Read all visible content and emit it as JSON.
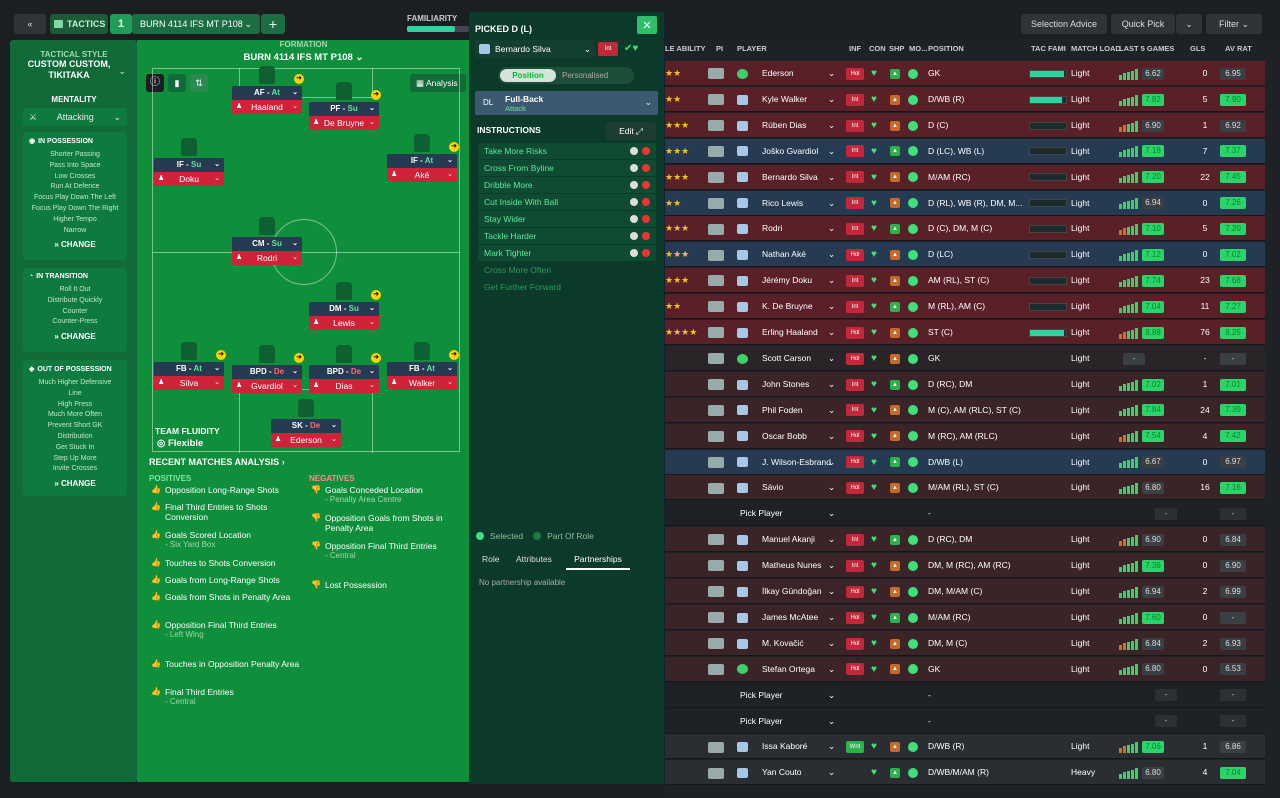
{
  "topbar": {
    "tactics_label": "TACTICS",
    "tactic_number": "1",
    "tactic_name": "BURN 4114 IFS MT P108",
    "familiarity_label": "FAMILIARITY",
    "familiarity": 0.78,
    "selection_advice": "Selection Advice",
    "quick_pick": "Quick Pick",
    "filter": "Filter"
  },
  "style": {
    "title": "TACTICAL STYLE",
    "name": "CUSTOM CUSTOM, TIKITAKA",
    "mentality_label": "MENTALITY",
    "mentality": "Attacking",
    "in_possession": {
      "title": "IN POSSESSION",
      "items": [
        "Shorter Passing",
        "Pass Into Space",
        "Low Crosses",
        "Run At Defence",
        "Focus Play Down The Left",
        "Focus Play Down The Right",
        "Higher Tempo",
        "Narrow"
      ],
      "change": "CHANGE"
    },
    "in_transition": {
      "title": "IN TRANSITION",
      "items": [
        "Roll It Out",
        "Distribute Quickly",
        "Counter",
        "Counter-Press"
      ],
      "change": "CHANGE"
    },
    "out_of_possession": {
      "title": "OUT OF POSSESSION",
      "items": [
        "Much Higher Defensive",
        "Line",
        "High Press",
        "Much More Often",
        "Prevent Short GK",
        "Distribution",
        "Get Stuck In",
        "Step Up More",
        "Invite Crosses"
      ],
      "change": "CHANGE"
    }
  },
  "formation": {
    "label": "FORMATION",
    "name": "BURN 4114 IFS MT P108",
    "analysis": "Analysis",
    "fluidity_label": "TEAM FLUIDITY",
    "fluidity": "Flexible",
    "players": [
      {
        "role": "AF",
        "duty": "At",
        "name": "Haaland"
      },
      {
        "role": "PF",
        "duty": "Su",
        "name": "De Bruyne"
      },
      {
        "role": "IF",
        "duty": "Su",
        "name": "Doku"
      },
      {
        "role": "IF",
        "duty": "At",
        "name": "Aké"
      },
      {
        "role": "CM",
        "duty": "Su",
        "name": "Rodri"
      },
      {
        "role": "DM",
        "duty": "Su",
        "name": "Lewis"
      },
      {
        "role": "FB",
        "duty": "At",
        "name": "Silva"
      },
      {
        "role": "BPD",
        "duty": "De",
        "name": "Gvardiol"
      },
      {
        "role": "BPD",
        "duty": "De",
        "name": "Dias"
      },
      {
        "role": "FB",
        "duty": "At",
        "name": "Walker"
      },
      {
        "role": "SK",
        "duty": "De",
        "name": "Ederson"
      }
    ]
  },
  "analysis": {
    "title": "RECENT MATCHES ANALYSIS",
    "positives_label": "POSITIVES",
    "negatives_label": "NEGATIVES",
    "positives": [
      {
        "t": "Opposition Long-Range Shots",
        "s": ""
      },
      {
        "t": "Final Third Entries to Shots Conversion",
        "s": ""
      },
      {
        "t": "Goals Scored Location",
        "s": "- Six Yard Box"
      },
      {
        "t": "Touches to Shots Conversion",
        "s": ""
      },
      {
        "t": "Goals from Long-Range Shots",
        "s": ""
      },
      {
        "t": "Goals from Shots in Penalty Area",
        "s": ""
      },
      {
        "t": "Opposition Final Third Entries",
        "s": "- Left Wing"
      },
      {
        "t": "Touches in Opposition Penalty Area",
        "s": ""
      },
      {
        "t": "Final Third Entries",
        "s": "- Central"
      }
    ],
    "negatives": [
      {
        "t": "Goals Conceded Location",
        "s": "- Penalty Area Centre"
      },
      {
        "t": "Opposition Goals from Shots in Penalty Area",
        "s": ""
      },
      {
        "t": "Opposition Final Third Entries",
        "s": "- Central"
      },
      {
        "t": "Lost Possession",
        "s": ""
      }
    ]
  },
  "picked": {
    "title": "PICKED D (L)",
    "player": "Bernardo Silva",
    "tag": "Int",
    "position_tab": "Position",
    "personalised_tab": "Personalised",
    "pos_code": "DL",
    "role": "Full-Back",
    "duty": "Attack",
    "instructions_label": "INSTRUCTIONS",
    "edit": "Edit",
    "instructions": [
      "Take More Risks",
      "Cross From Byline",
      "Dribble More",
      "Cut Inside With Ball",
      "Stay Wider",
      "Tackle Harder",
      "Mark Tighter"
    ],
    "dim_instructions": [
      "Cross More Often",
      "Get Further Forward"
    ],
    "selected": "Selected",
    "part_of_role": "Part Of Role",
    "tabs": [
      "Role",
      "Attributes",
      "Partnerships"
    ],
    "no_partnership": "No partnership available"
  },
  "table": {
    "headers": [
      "LE ABILITY",
      "PI",
      "PLAYER",
      "INF",
      "CON",
      "SHP",
      "MO...",
      "POSITION",
      "TAC FAMI",
      "MATCH LOAD",
      "LAST 5 GAMES",
      "GLS",
      "AV RAT"
    ],
    "rows": [
      {
        "name": "Ederson",
        "inf": "Hol",
        "pos": "GK",
        "load": "Light",
        "last": "6.62",
        "gls": "0",
        "rat": "6.95",
        "fam": 0.95,
        "gk": true,
        "bg": "#5a2028",
        "stars": "★★"
      },
      {
        "name": "Kyle Walker",
        "inf": "Int",
        "pos": "D/WB (R)",
        "load": "Light",
        "last": "7.82",
        "gls": "5",
        "rat": "7.90",
        "fam": 0.9,
        "bg": "#5a2028",
        "stars": "★★"
      },
      {
        "name": "Rúben Dias",
        "inf": "Int",
        "pos": "D (C)",
        "load": "Light",
        "last": "6.90",
        "gls": "1",
        "rat": "6.92",
        "fam": 0.0,
        "bg": "#5a2028",
        "stars": "★★★"
      },
      {
        "name": "Joško Gvardiol",
        "inf": "Int",
        "pos": "D (LC), WB (L)",
        "load": "Light",
        "last": "7.18",
        "gls": "7",
        "rat": "7.37",
        "fam": 0.0,
        "bg": "#263a52",
        "stars": "★★★"
      },
      {
        "name": "Bernardo Silva",
        "inf": "Int",
        "pos": "M/AM (RC)",
        "load": "Light",
        "last": "7.20",
        "gls": "22",
        "rat": "7.45",
        "fam": 0.0,
        "bg": "#5a2028",
        "stars": "★★★"
      },
      {
        "name": "Rico Lewis",
        "inf": "Int",
        "pos": "D (RL), WB (R), DM, M...",
        "load": "Light",
        "last": "6.94",
        "gls": "0",
        "rat": "7.26",
        "fam": 0.0,
        "bg": "#263a52",
        "stars": "★★"
      },
      {
        "name": "Rodri",
        "inf": "Int",
        "pos": "D (C), DM, M (C)",
        "load": "Light",
        "last": "7.10",
        "gls": "5",
        "rat": "7.20",
        "fam": 0.0,
        "bg": "#5a2028",
        "stars": "★★★"
      },
      {
        "name": "Nathan Aké",
        "inf": "Hol",
        "pos": "D (LC)",
        "load": "Light",
        "last": "7.12",
        "gls": "0",
        "rat": "7.02",
        "fam": 0.0,
        "bg": "#263a52",
        "stars": "★★★"
      },
      {
        "name": "Jérémy Doku",
        "inf": "Int",
        "pos": "AM (RL), ST (C)",
        "load": "Light",
        "last": "7.74",
        "gls": "23",
        "rat": "7.68",
        "fam": 0.0,
        "bg": "#5a2028",
        "stars": "★★★"
      },
      {
        "name": "K. De Bruyne",
        "inf": "Int",
        "pos": "M (RL), AM (C)",
        "load": "Light",
        "last": "7.04",
        "gls": "11",
        "rat": "7.27",
        "fam": 0.0,
        "bg": "#5a2028",
        "stars": "★★"
      },
      {
        "name": "Erling Haaland",
        "inf": "Hol",
        "pos": "ST (C)",
        "load": "Light",
        "last": "8.88",
        "gls": "76",
        "rat": "8.25",
        "fam": 0.95,
        "bg": "#5a2028",
        "stars": "★★★★"
      },
      {
        "name": "Scott Carson",
        "inf": "Hol",
        "pos": "GK",
        "load": "Light",
        "last": "-",
        "gls": "-",
        "rat": "-",
        "gk": true,
        "bg": "#2a2428"
      },
      {
        "name": "John Stones",
        "inf": "Int",
        "pos": "D (RC), DM",
        "load": "Light",
        "last": "7.02",
        "gls": "1",
        "rat": "7.01",
        "bg": "#3a2428"
      },
      {
        "name": "Phil Foden",
        "inf": "Int",
        "pos": "M (C), AM (RLC), ST (C)",
        "load": "Light",
        "last": "7.84",
        "gls": "24",
        "rat": "7.39",
        "bg": "#3a2428"
      },
      {
        "name": "Oscar Bobb",
        "inf": "Hol",
        "pos": "M (RC), AM (RLC)",
        "load": "Light",
        "last": "7.54",
        "gls": "4",
        "rat": "7.42",
        "bg": "#3a2428"
      },
      {
        "name": "J. Wilson-Esbrand",
        "inf": "Hol",
        "pos": "D/WB (L)",
        "load": "Light",
        "last": "6.67",
        "gls": "0",
        "rat": "6.97",
        "bg": "#263a52"
      },
      {
        "name": "Sávio",
        "inf": "Hol",
        "pos": "M/AM (RL), ST (C)",
        "load": "Light",
        "last": "6.80",
        "gls": "16",
        "rat": "7.16",
        "bg": "#3a2428"
      },
      {
        "name": "Pick Player",
        "inf": "",
        "pos": "-",
        "load": "",
        "last": "-",
        "gls": "",
        "rat": "-",
        "empty": true,
        "bg": "#1e2226"
      },
      {
        "name": "Manuel Akanji",
        "inf": "Int",
        "pos": "D (RC), DM",
        "load": "Light",
        "last": "6.90",
        "gls": "0",
        "rat": "6.84",
        "bg": "#3a2428"
      },
      {
        "name": "Matheus Nunes",
        "inf": "Int",
        "pos": "DM, M (RC), AM (RC)",
        "load": "Light",
        "last": "7.36",
        "gls": "0",
        "rat": "6.90",
        "bg": "#3a2428"
      },
      {
        "name": "İlkay Gündoğan",
        "inf": "Hol",
        "pos": "DM, M/AM (C)",
        "load": "Light",
        "last": "6.94",
        "gls": "2",
        "rat": "6.99",
        "bg": "#3a2428"
      },
      {
        "name": "James McAtee",
        "inf": "Hol",
        "pos": "M/AM (RC)",
        "load": "Light",
        "last": "7.60",
        "gls": "0",
        "rat": "-",
        "bg": "#3a2428"
      },
      {
        "name": "M. Kovačić",
        "inf": "Hol",
        "pos": "DM, M (C)",
        "load": "Light",
        "last": "6.84",
        "gls": "2",
        "rat": "6.93",
        "bg": "#3a2428"
      },
      {
        "name": "Stefan Ortega",
        "inf": "Hol",
        "pos": "GK",
        "load": "Light",
        "last": "6.80",
        "gls": "0",
        "rat": "6.53",
        "gk": true,
        "bg": "#3a2428"
      },
      {
        "name": "Pick Player",
        "inf": "",
        "pos": "-",
        "load": "",
        "last": "-",
        "gls": "",
        "rat": "-",
        "empty": true,
        "bg": "#1e2226"
      },
      {
        "name": "Pick Player",
        "inf": "",
        "pos": "-",
        "load": "",
        "last": "-",
        "gls": "",
        "rat": "-",
        "empty": true,
        "bg": "#1e2226"
      },
      {
        "name": "Issa Kaboré",
        "inf": "Wnt",
        "pos": "D/WB (R)",
        "load": "Light",
        "last": "7.06",
        "gls": "1",
        "rat": "6.86",
        "bg": "#2a2e33"
      },
      {
        "name": "Yan Couto",
        "inf": "",
        "pos": "D/WB/M/AM (R)",
        "load": "Heavy",
        "last": "6.80",
        "gls": "4",
        "rat": "7.04",
        "bg": "#2a2e33"
      }
    ]
  }
}
